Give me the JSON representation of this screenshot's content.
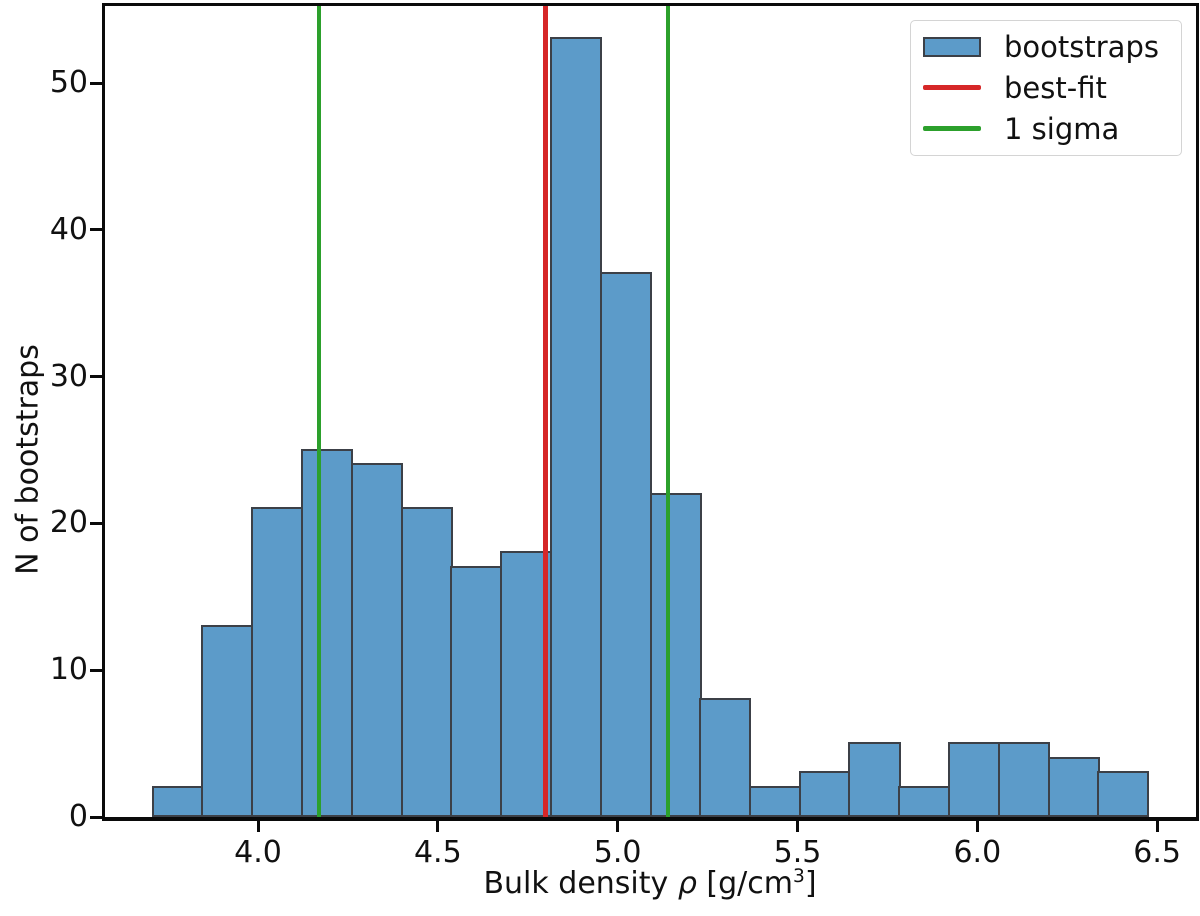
{
  "figure": {
    "ylabel": "N of bootstraps",
    "xlabel": {
      "prefix": "Bulk density ",
      "rho": "ρ",
      "mid": " [g/cm",
      "sup": "3",
      "suffix": "]"
    }
  },
  "chart_data": {
    "type": "bar",
    "subtype": "histogram",
    "title": "",
    "xlabel": "Bulk density ρ [g/cm³]",
    "ylabel": "N of bootstraps",
    "bin_edges": [
      3.708,
      3.846,
      3.985,
      4.123,
      4.261,
      4.4,
      4.538,
      4.677,
      4.815,
      4.953,
      5.092,
      5.23,
      5.368,
      5.507,
      5.645,
      5.784,
      5.922,
      6.06,
      6.199,
      6.337,
      6.475
    ],
    "counts": [
      2,
      13,
      21,
      25,
      24,
      21,
      17,
      18,
      53,
      37,
      22,
      8,
      2,
      3,
      5,
      2,
      5,
      5,
      4,
      3
    ],
    "vlines": [
      {
        "name": "best-fit",
        "x": 4.8,
        "color": "#d62728",
        "width": 5
      },
      {
        "name": "1-sigma-lower",
        "x": 4.17,
        "color": "#2ca02c",
        "width": 4.5
      },
      {
        "name": "1-sigma-upper",
        "x": 5.14,
        "color": "#2ca02c",
        "width": 4.5
      }
    ],
    "xticks": {
      "values": [
        4.0,
        4.5,
        5.0,
        5.5,
        6.0,
        6.5
      ],
      "labels": [
        "4.0",
        "4.5",
        "5.0",
        "5.5",
        "6.0",
        "6.5"
      ]
    },
    "yticks": {
      "values": [
        0,
        10,
        20,
        30,
        40,
        50
      ],
      "labels": [
        "0",
        "10",
        "20",
        "30",
        "40",
        "50"
      ]
    },
    "xlim": [
      3.569,
      6.608
    ],
    "ylim": [
      0,
      55.45
    ],
    "grid": false,
    "legend": {
      "position": "upper right",
      "items": [
        {
          "label": "bootstraps",
          "swatch": "patch",
          "color": "#5c9bc9",
          "edge": "#3c4047"
        },
        {
          "label": "best-fit",
          "swatch": "line",
          "color": "#d62728"
        },
        {
          "label": "1 sigma",
          "swatch": "line",
          "color": "#2ca02c"
        }
      ]
    },
    "colors": {
      "bar_fill": "#5c9bc9",
      "bar_edge": "#3c4047",
      "best_fit_line": "#d62728",
      "sigma_line": "#2ca02c",
      "axes": "#0a0a0a"
    }
  }
}
